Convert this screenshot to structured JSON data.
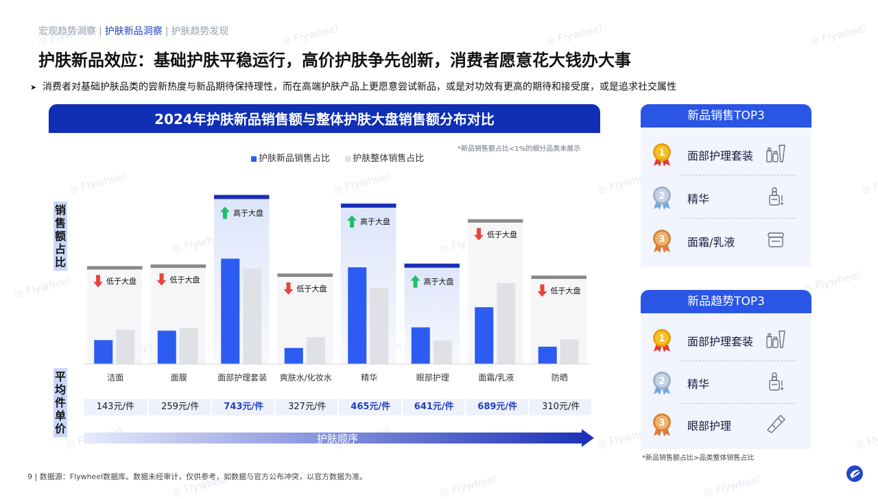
{
  "header": {
    "breadcrumb": [
      "宏观趋势洞察",
      "护肤新品洞察",
      "护肤趋势发现"
    ],
    "breadcrumb_active": 1,
    "title": "护肤新品效应：基础护肤平稳运行，高价护肤争先创新，消费者愿意花大钱办大事",
    "bullet": "消费者对基础护肤品类的尝新热度与新品期待保持理性，而在高端护肤产品上更愿意尝试新品，或是对功效有更高的期待和接受度，或是追求社交属性"
  },
  "chart_data": {
    "type": "bar",
    "title": "2024年护肤新品销售额与整体护肤大盘销售额分布对比",
    "note": "*新品销售额占比<1%的细分品类未展示",
    "ylabel": "销售额占比",
    "categories": [
      "洁面",
      "面膜",
      "面部护理套装",
      "爽肤水/化妆水",
      "精华",
      "眼部护理",
      "面霜/乳液",
      "防晒"
    ],
    "series": [
      {
        "name": "护肤新品销售占比",
        "color": "#2d5cf2",
        "values": [
          5.8,
          8.1,
          25.6,
          3.9,
          23.5,
          8.9,
          13.8,
          4.2
        ]
      },
      {
        "name": "护肤整体销售占比",
        "color": "#dfe1e7",
        "values": [
          8.3,
          8.7,
          23.2,
          6.5,
          18.5,
          5.7,
          19.7,
          6.0
        ]
      }
    ],
    "comparison": [
      "低于大盘",
      "低于大盘",
      "高于大盘",
      "低于大盘",
      "高于大盘",
      "高于大盘",
      "低于大盘",
      "低于大盘"
    ],
    "comparison_direction": [
      "down",
      "down",
      "up",
      "down",
      "up",
      "up",
      "down",
      "down"
    ],
    "ylim": [
      0,
      30
    ],
    "grid": false,
    "legend_position": "top-center"
  },
  "prices": {
    "label": "平均件单价",
    "values": [
      "143元/件",
      "259元/件",
      "743元/件",
      "327元/件",
      "465元/件",
      "641元/件",
      "689元/件",
      "310元/件"
    ],
    "highlight": [
      false,
      false,
      true,
      false,
      true,
      true,
      true,
      false
    ]
  },
  "flow_label": "护肤顺序",
  "source": "9  | 数据源：Flywheel数据库。数据未经审计，仅供参考，如数据与官方公布冲突，以官方数据为准。",
  "top_sales": {
    "title": "新品销售TOP3",
    "items": [
      {
        "rank": "1",
        "name": "面部护理套装",
        "icon": "skincare-set-icon"
      },
      {
        "rank": "2",
        "name": "精华",
        "icon": "serum-bottle-icon"
      },
      {
        "rank": "3",
        "name": "面霜/乳液",
        "icon": "cream-jar-icon"
      }
    ]
  },
  "top_trend": {
    "title": "新品趋势TOP3",
    "items": [
      {
        "rank": "1",
        "name": "面部护理套装",
        "icon": "skincare-set-icon"
      },
      {
        "rank": "2",
        "name": "精华",
        "icon": "serum-bottle-icon"
      },
      {
        "rank": "3",
        "name": "眼部护理",
        "icon": "eye-cream-tube-icon"
      }
    ],
    "footnote": "*新品销售额占比>品类整体销售占比"
  },
  "watermark": "Flywheel",
  "colors": {
    "brand": "#0f2fb5",
    "accent": "#2a55e5",
    "up": "#1fbf6a",
    "down": "#e8453c"
  }
}
